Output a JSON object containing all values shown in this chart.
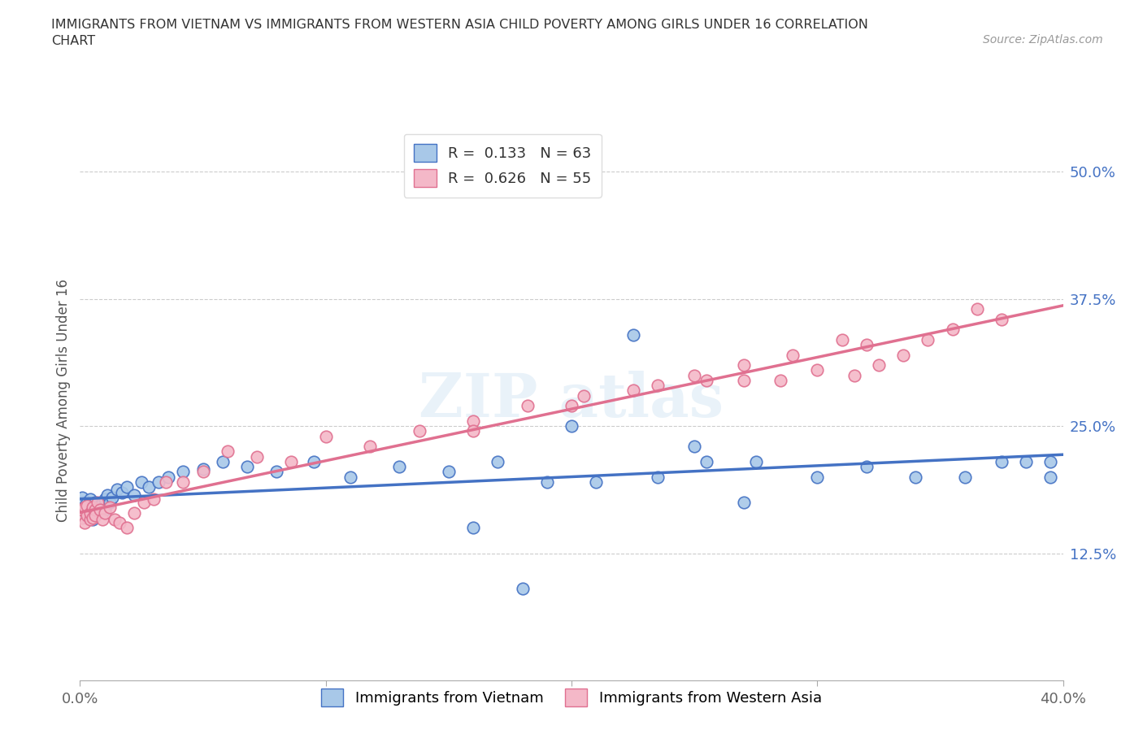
{
  "title": "IMMIGRANTS FROM VIETNAM VS IMMIGRANTS FROM WESTERN ASIA CHILD POVERTY AMONG GIRLS UNDER 16 CORRELATION\nCHART",
  "source": "Source: ZipAtlas.com",
  "ylabel": "Child Poverty Among Girls Under 16",
  "xlim": [
    0.0,
    0.4
  ],
  "ylim": [
    0.0,
    0.55
  ],
  "xticks": [
    0.0,
    0.1,
    0.2,
    0.3,
    0.4
  ],
  "xtick_labels": [
    "0.0%",
    "",
    "",
    "",
    "40.0%"
  ],
  "ytick_labels_right": [
    "50.0%",
    "37.5%",
    "25.0%",
    "12.5%"
  ],
  "ytick_vals_right": [
    0.5,
    0.375,
    0.25,
    0.125
  ],
  "r_vietnam": 0.133,
  "n_vietnam": 63,
  "r_western_asia": 0.626,
  "n_western_asia": 55,
  "color_vietnam": "#a8c8e8",
  "color_western_asia": "#f4b8c8",
  "line_color_vietnam": "#4472c4",
  "line_color_western_asia": "#e07090",
  "vietnam_x": [
    0.001,
    0.001,
    0.002,
    0.002,
    0.003,
    0.003,
    0.003,
    0.004,
    0.004,
    0.004,
    0.005,
    0.005,
    0.005,
    0.006,
    0.006,
    0.006,
    0.007,
    0.007,
    0.008,
    0.008,
    0.009,
    0.01,
    0.01,
    0.011,
    0.012,
    0.013,
    0.015,
    0.017,
    0.019,
    0.022,
    0.025,
    0.028,
    0.032,
    0.036,
    0.042,
    0.05,
    0.058,
    0.068,
    0.08,
    0.095,
    0.11,
    0.13,
    0.15,
    0.17,
    0.19,
    0.21,
    0.235,
    0.255,
    0.275,
    0.3,
    0.32,
    0.34,
    0.36,
    0.375,
    0.385,
    0.395,
    0.395,
    0.2,
    0.225,
    0.25,
    0.16,
    0.18,
    0.27
  ],
  "vietnam_y": [
    0.175,
    0.18,
    0.17,
    0.165,
    0.175,
    0.168,
    0.16,
    0.172,
    0.162,
    0.178,
    0.165,
    0.17,
    0.158,
    0.168,
    0.175,
    0.162,
    0.165,
    0.17,
    0.168,
    0.172,
    0.175,
    0.168,
    0.178,
    0.182,
    0.175,
    0.18,
    0.188,
    0.185,
    0.19,
    0.182,
    0.195,
    0.19,
    0.195,
    0.2,
    0.205,
    0.208,
    0.215,
    0.21,
    0.205,
    0.215,
    0.2,
    0.21,
    0.205,
    0.215,
    0.195,
    0.195,
    0.2,
    0.215,
    0.215,
    0.2,
    0.21,
    0.2,
    0.2,
    0.215,
    0.215,
    0.2,
    0.215,
    0.25,
    0.34,
    0.23,
    0.15,
    0.09,
    0.175
  ],
  "western_asia_x": [
    0.001,
    0.001,
    0.002,
    0.002,
    0.003,
    0.003,
    0.004,
    0.004,
    0.005,
    0.005,
    0.006,
    0.006,
    0.007,
    0.008,
    0.009,
    0.01,
    0.012,
    0.014,
    0.016,
    0.019,
    0.022,
    0.026,
    0.03,
    0.035,
    0.042,
    0.05,
    0.06,
    0.072,
    0.086,
    0.1,
    0.118,
    0.138,
    0.16,
    0.182,
    0.205,
    0.225,
    0.25,
    0.27,
    0.285,
    0.3,
    0.315,
    0.325,
    0.335,
    0.345,
    0.355,
    0.365,
    0.375,
    0.32,
    0.16,
    0.2,
    0.235,
    0.255,
    0.27,
    0.29,
    0.31
  ],
  "western_asia_y": [
    0.16,
    0.168,
    0.155,
    0.17,
    0.162,
    0.172,
    0.158,
    0.165,
    0.16,
    0.17,
    0.168,
    0.162,
    0.175,
    0.168,
    0.158,
    0.165,
    0.17,
    0.158,
    0.155,
    0.15,
    0.165,
    0.175,
    0.178,
    0.195,
    0.195,
    0.205,
    0.225,
    0.22,
    0.215,
    0.24,
    0.23,
    0.245,
    0.255,
    0.27,
    0.28,
    0.285,
    0.3,
    0.295,
    0.295,
    0.305,
    0.3,
    0.31,
    0.32,
    0.335,
    0.345,
    0.365,
    0.355,
    0.33,
    0.245,
    0.27,
    0.29,
    0.295,
    0.31,
    0.32,
    0.335
  ]
}
